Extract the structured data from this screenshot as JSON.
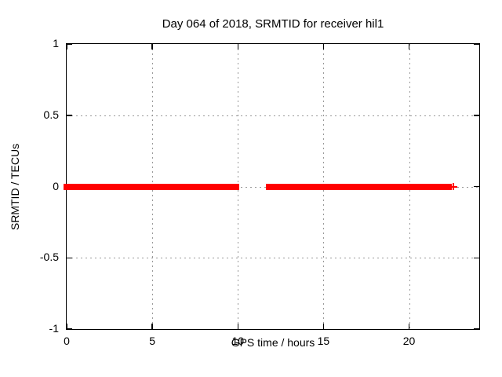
{
  "title": "Day 064 of 2018, SRMTID for receiver hil1",
  "colors": {
    "data": "#ff0000",
    "grid": "#999999",
    "axis": "#000000",
    "background": "#ffffff",
    "text": "#000000"
  },
  "chart_data": {
    "type": "scatter",
    "marker": "+",
    "title": "Day 064 of 2018, SRMTID for receiver hil1",
    "xlabel": "GPS time / hours",
    "ylabel": "SRMTID / TECUs",
    "xlim": [
      0,
      24.1
    ],
    "ylim": [
      -1,
      1
    ],
    "grid": true,
    "legend": "none",
    "xticks": [
      {
        "v": 0,
        "label": "0"
      },
      {
        "v": 5,
        "label": "5"
      },
      {
        "v": 10,
        "label": "10"
      },
      {
        "v": 15,
        "label": "15"
      },
      {
        "v": 20,
        "label": "20"
      }
    ],
    "yticks": [
      {
        "v": -1,
        "label": "-1"
      },
      {
        "v": -0.5,
        "label": "-0.5"
      },
      {
        "v": 0,
        "label": "0"
      },
      {
        "v": 0.5,
        "label": "0.5"
      },
      {
        "v": 1,
        "label": "1"
      }
    ],
    "series": [
      {
        "name": "SRMTID",
        "color": "#ff0000",
        "y_value": 0,
        "dense_segments": [
          {
            "x_start": 0,
            "x_end": 9.9,
            "y": 0
          },
          {
            "x_start": 11.8,
            "x_end": 22.3,
            "y": 0
          }
        ],
        "isolated_points": [
          {
            "x": 22.6,
            "y": 0
          }
        ]
      }
    ]
  }
}
